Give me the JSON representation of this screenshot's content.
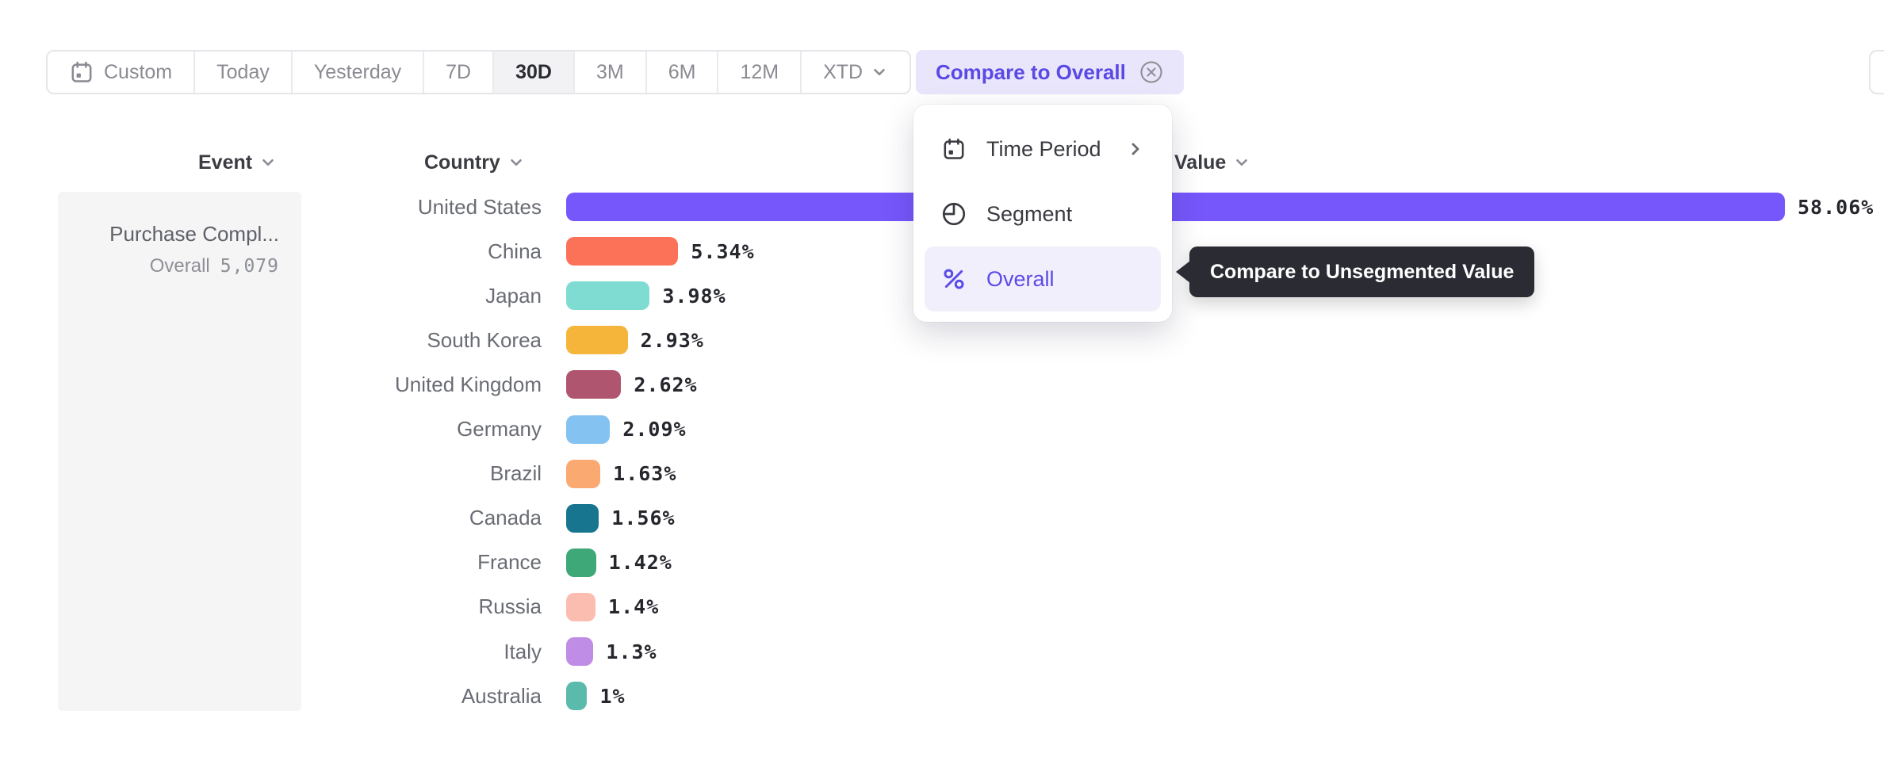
{
  "toolbar": {
    "ranges": [
      {
        "label": "Custom",
        "icon": "calendar",
        "selected": false
      },
      {
        "label": "Today",
        "selected": false
      },
      {
        "label": "Yesterday",
        "selected": false
      },
      {
        "label": "7D",
        "selected": false
      },
      {
        "label": "30D",
        "selected": true
      },
      {
        "label": "3M",
        "selected": false
      },
      {
        "label": "6M",
        "selected": false
      },
      {
        "label": "12M",
        "selected": false
      },
      {
        "label": "XTD",
        "selected": false,
        "chevron": true
      }
    ],
    "compare_button": {
      "label": "Compare to Overall",
      "icon": "close-circle"
    }
  },
  "columns": {
    "event": {
      "label": "Event",
      "icon": "chevron-down"
    },
    "country": {
      "label": "Country",
      "icon": "chevron-down"
    },
    "value": {
      "label": "Value",
      "icon": "chevron-down"
    }
  },
  "event_panel": {
    "title": "Purchase Compl...",
    "overall_label": "Overall",
    "overall_value": "5,079"
  },
  "menu": {
    "items": [
      {
        "label": "Time Period",
        "icon": "calendar",
        "chevron": true,
        "active": false
      },
      {
        "label": "Segment",
        "icon": "segment",
        "active": false
      },
      {
        "label": "Overall",
        "icon": "percent",
        "active": true
      }
    ]
  },
  "tooltip": {
    "text": "Compare to Unsegmented Value"
  },
  "chart_data": {
    "type": "bar",
    "orientation": "horizontal",
    "title": "",
    "xlabel": "",
    "ylabel": "Country",
    "unit": "%",
    "value_axis_max": 58.06,
    "grid": false,
    "categories": [
      "United States",
      "China",
      "Japan",
      "South Korea",
      "United Kingdom",
      "Germany",
      "Brazil",
      "Canada",
      "France",
      "Russia",
      "Italy",
      "Australia"
    ],
    "values": [
      58.06,
      5.34,
      3.98,
      2.93,
      2.62,
      2.09,
      1.63,
      1.56,
      1.42,
      1.4,
      1.3,
      1
    ],
    "value_labels": [
      "58.06%",
      "5.34%",
      "3.98%",
      "2.93%",
      "2.62%",
      "2.09%",
      "1.63%",
      "1.56%",
      "1.42%",
      "1.4%",
      "1.3%",
      "1%"
    ],
    "bar_colors": [
      "#7657FB",
      "#FB7258",
      "#7EDCD2",
      "#F5B53A",
      "#B0556F",
      "#84C2F2",
      "#FAA970",
      "#18758F",
      "#3FA878",
      "#FCBDB1",
      "#BF8CE6",
      "#5ABAAC"
    ]
  },
  "colors": {
    "accent_purple": "#5A49E3",
    "compare_button_bg": "#E9E6FC",
    "menu_highlight_bg": "#F2EFFC",
    "tooltip_bg": "#2B2C33",
    "selected_range_bg": "#F2F2F4",
    "panel_bg": "#F5F5F6"
  }
}
